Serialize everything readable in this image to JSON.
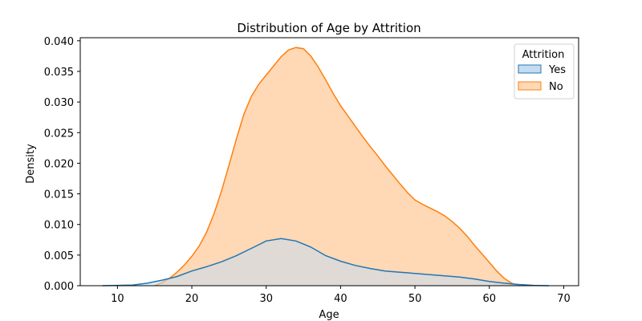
{
  "chart_data": {
    "type": "area",
    "title": "Distribution of Age by Attrition",
    "xlabel": "Age",
    "ylabel": "Density",
    "xlim": [
      5,
      72
    ],
    "ylim": [
      0,
      0.0405
    ],
    "xticks": [
      10,
      20,
      30,
      40,
      50,
      60,
      70
    ],
    "yticks": [
      0.0,
      0.005,
      0.01,
      0.015,
      0.02,
      0.025,
      0.03,
      0.035,
      0.04
    ],
    "ytick_labels": [
      "0.000",
      "0.005",
      "0.010",
      "0.015",
      "0.020",
      "0.025",
      "0.030",
      "0.035",
      "0.040"
    ],
    "grid": false,
    "legend": {
      "title": "Attrition",
      "placement": "top-right"
    },
    "series": [
      {
        "name": "No",
        "color": "#ff7f0e",
        "fill": "#ffd8b5",
        "x": [
          15,
          16,
          17,
          18,
          19,
          20,
          21,
          22,
          23,
          24,
          25,
          26,
          27,
          28,
          29,
          30,
          31,
          32,
          33,
          34,
          35,
          36,
          37,
          38,
          39,
          40,
          41,
          42,
          43,
          44,
          45,
          46,
          47,
          48,
          49,
          50,
          51,
          52,
          53,
          54,
          55,
          56,
          57,
          58,
          59,
          60,
          61,
          62,
          63,
          64
        ],
        "y": [
          0.0,
          0.0005,
          0.0012,
          0.0022,
          0.0034,
          0.0048,
          0.0065,
          0.0088,
          0.0118,
          0.0155,
          0.0197,
          0.024,
          0.028,
          0.0309,
          0.0329,
          0.0344,
          0.0359,
          0.0374,
          0.0385,
          0.0389,
          0.0387,
          0.0375,
          0.0357,
          0.0336,
          0.0314,
          0.0294,
          0.0277,
          0.026,
          0.0243,
          0.0227,
          0.0212,
          0.0196,
          0.0181,
          0.0166,
          0.0152,
          0.014,
          0.0133,
          0.0127,
          0.0121,
          0.0114,
          0.0105,
          0.0094,
          0.0081,
          0.0066,
          0.0052,
          0.0038,
          0.0024,
          0.0012,
          0.0004,
          0.0
        ]
      },
      {
        "name": "Yes",
        "color": "#1f77b4",
        "fill": "#c5dcef",
        "x": [
          8,
          10,
          12,
          14,
          16,
          18,
          20,
          22,
          24,
          26,
          28,
          30,
          32,
          34,
          36,
          38,
          40,
          42,
          44,
          46,
          48,
          50,
          52,
          54,
          56,
          58,
          60,
          62,
          64,
          66,
          68
        ],
        "y": [
          0.0,
          5e-05,
          0.0001,
          0.0004,
          0.0009,
          0.0015,
          0.0024,
          0.0031,
          0.0039,
          0.0049,
          0.0061,
          0.0073,
          0.0077,
          0.0073,
          0.0063,
          0.0049,
          0.004,
          0.0033,
          0.0028,
          0.0024,
          0.0022,
          0.002,
          0.0018,
          0.0016,
          0.0014,
          0.0011,
          0.0007,
          0.0004,
          0.0002,
          5e-05,
          0.0
        ]
      }
    ]
  }
}
